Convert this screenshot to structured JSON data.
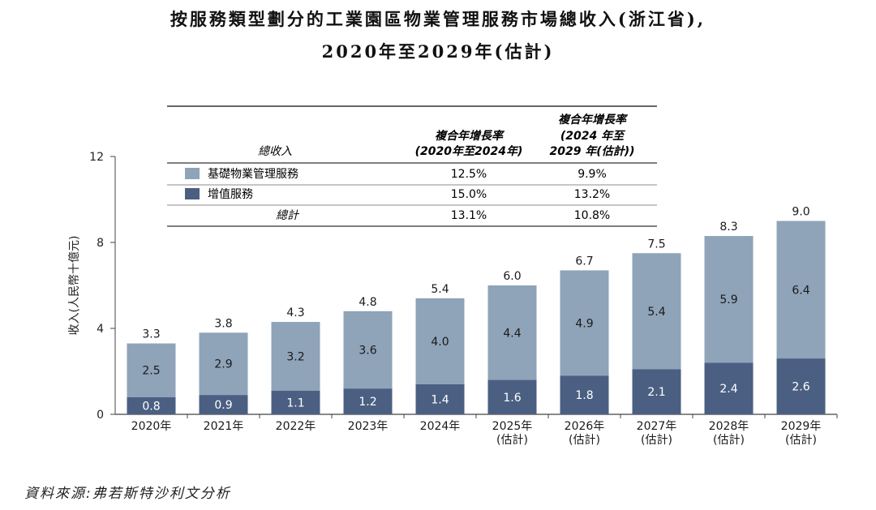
{
  "title": {
    "line1": "按服務類型劃分的工業園區物業管理服務市場總收入(浙江省),",
    "line2": "2020年至2029年(估計)"
  },
  "source": "資料來源:弗若斯特沙利文分析",
  "colors": {
    "basic": "#8fa3b9",
    "value_added": "#4b5f82",
    "axis": "#444444"
  },
  "table": {
    "header_total": "總收入",
    "cagr1_line1": "複合年增長率",
    "cagr1_line2": "(2020年至2024年)",
    "cagr2_line1": "複合年增長率",
    "cagr2_line2": "(2024 年至",
    "cagr2_line3": "2029 年(估計))",
    "rows": [
      {
        "label": "基礎物業管理服務",
        "cagr1": "12.5%",
        "cagr2": "9.9%"
      },
      {
        "label": "增值服務",
        "cagr1": "15.0%",
        "cagr2": "13.2%"
      },
      {
        "label": "總計",
        "cagr1": "13.1%",
        "cagr2": "10.8%"
      }
    ]
  },
  "chart_data": {
    "type": "bar",
    "stacked": true,
    "ylabel": "收入(人民幣十億元)",
    "ylim": [
      0,
      12
    ],
    "yticks": [
      "0",
      "4",
      "8",
      "12"
    ],
    "categories": [
      [
        "2020年"
      ],
      [
        "2021年"
      ],
      [
        "2022年"
      ],
      [
        "2023年"
      ],
      [
        "2024年"
      ],
      [
        "2025年",
        "(估計)"
      ],
      [
        "2026年",
        "(估計)"
      ],
      [
        "2027年",
        "(估計)"
      ],
      [
        "2028年",
        "(估計)"
      ],
      [
        "2029年",
        "(估計)"
      ]
    ],
    "series": [
      {
        "name": "增值服務",
        "values": [
          0.8,
          0.9,
          1.1,
          1.2,
          1.4,
          1.6,
          1.8,
          2.1,
          2.4,
          2.6
        ],
        "labels": [
          "0.8",
          "0.9",
          "1.1",
          "1.2",
          "1.4",
          "1.6",
          "1.8",
          "2.1",
          "2.4",
          "2.6"
        ]
      },
      {
        "name": "基礎物業管理服務",
        "values": [
          2.5,
          2.9,
          3.2,
          3.6,
          4.0,
          4.4,
          4.9,
          5.4,
          5.9,
          6.4
        ],
        "labels": [
          "2.5",
          "2.9",
          "3.2",
          "3.6",
          "4.0",
          "4.4",
          "4.9",
          "5.4",
          "5.9",
          "6.4"
        ]
      }
    ],
    "totals": [
      3.3,
      3.8,
      4.3,
      4.8,
      5.4,
      6.0,
      6.7,
      7.5,
      8.3,
      9.0
    ],
    "total_labels": [
      "3.3",
      "3.8",
      "4.3",
      "4.8",
      "5.4",
      "6.0",
      "6.7",
      "7.5",
      "8.3",
      "9.0"
    ]
  }
}
